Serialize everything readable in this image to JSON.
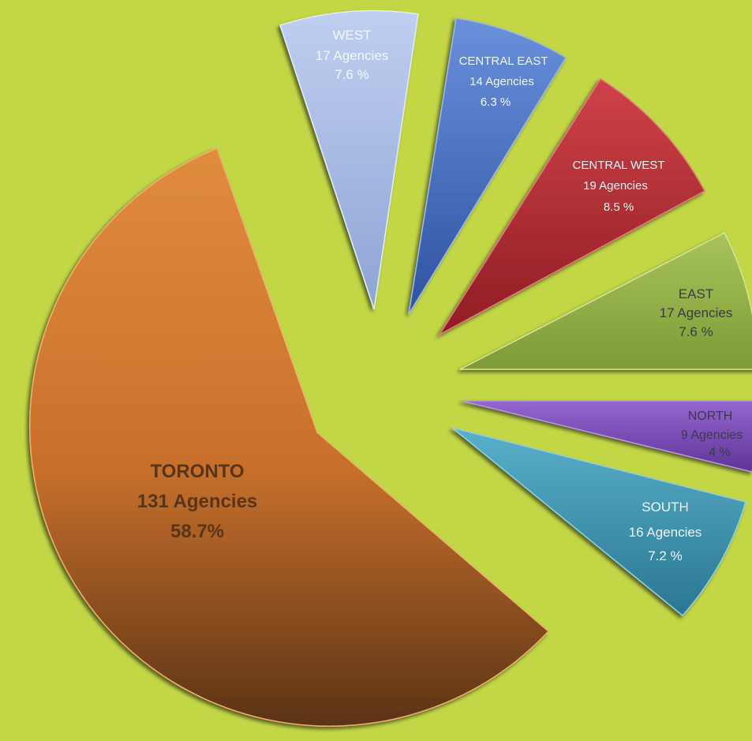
{
  "chart_data": {
    "type": "pie",
    "exploded": true,
    "background": "#c3d646",
    "slices": [
      {
        "key": "toronto",
        "region": "TORONTO",
        "agencies": "131 Agencies",
        "pct_label": "58.7%",
        "value": 58.7,
        "color_light": "#dd8a3c",
        "color_dark": "#5a3315"
      },
      {
        "key": "west",
        "region": "WEST",
        "agencies": "17 Agencies",
        "pct_label": "7.6 %",
        "value": 7.6,
        "color_light": "#b4c6ec",
        "color_dark": "#8ea4d4"
      },
      {
        "key": "central_east",
        "region": "CENTRAL EAST",
        "agencies": "14 Agencies",
        "pct_label": "6.3 %",
        "value": 6.3,
        "color_light": "#5c84d8",
        "color_dark": "#3358a8"
      },
      {
        "key": "central_west",
        "region": "CENTRAL  WEST",
        "agencies": "19 Agencies",
        "pct_label": "8.5 %",
        "value": 8.5,
        "color_light": "#c7383e",
        "color_dark": "#8e1d24"
      },
      {
        "key": "east",
        "region": "EAST",
        "agencies": "17 Agencies",
        "pct_label": "7.6 %",
        "value": 7.6,
        "color_light": "#9cbc4e",
        "color_dark": "#6f8e2e"
      },
      {
        "key": "north",
        "region": "NORTH",
        "agencies": "9 Agencies",
        "pct_label": "4 %",
        "value": 4.0,
        "color_light": "#8a58c8",
        "color_dark": "#5e3496"
      },
      {
        "key": "south",
        "region": "SOUTH",
        "agencies": "16 Agencies",
        "pct_label": "7.2 %",
        "value": 7.2,
        "color_light": "#4ea6c2",
        "color_dark": "#2a7690"
      }
    ]
  }
}
